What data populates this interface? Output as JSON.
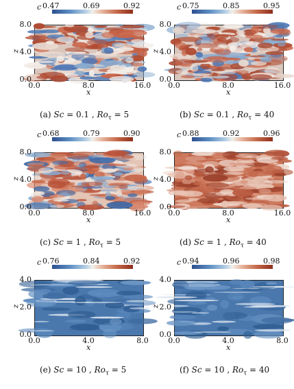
{
  "colorbar_variable": "c",
  "axis_labels": {
    "x": "x",
    "z": "z"
  },
  "panels": [
    {
      "id": "a",
      "caption_prefix": "(a)",
      "sc_label": "Sc",
      "sc_value": "0.1",
      "ro_label": "Ro",
      "ro_sub": "τ",
      "ro_value": "5",
      "cbar_ticks": [
        "0.47",
        "0.69",
        "0.92"
      ],
      "xticks": [
        "0.0",
        "8.0",
        "16.0"
      ],
      "zticks": [
        "0.0",
        "4.0",
        "8.0"
      ],
      "style": "mixed"
    },
    {
      "id": "b",
      "caption_prefix": "(b)",
      "sc_label": "Sc",
      "sc_value": "0.1",
      "ro_label": "Ro",
      "ro_sub": "τ",
      "ro_value": "40",
      "cbar_ticks": [
        "0.75",
        "0.85",
        "0.95"
      ],
      "xticks": [
        "0.0",
        "8.0",
        "16.0"
      ],
      "zticks": [
        "0.0",
        "4.0",
        "8.0"
      ],
      "style": "mixed"
    },
    {
      "id": "c",
      "caption_prefix": "(c)",
      "sc_label": "Sc",
      "sc_value": "1",
      "ro_label": "Ro",
      "ro_sub": "τ",
      "ro_value": "5",
      "cbar_ticks": [
        "0.68",
        "0.79",
        "0.90"
      ],
      "xticks": [
        "0.0",
        "8.0",
        "16.0"
      ],
      "zticks": [
        "0.0",
        "4.0",
        "8.0"
      ],
      "style": "speckle"
    },
    {
      "id": "d",
      "caption_prefix": "(d)",
      "sc_label": "Sc",
      "sc_value": "1",
      "ro_label": "Ro",
      "ro_sub": "τ",
      "ro_value": "40",
      "cbar_ticks": [
        "0.88",
        "0.92",
        "0.96"
      ],
      "xticks": [
        "0.0",
        "8.0",
        "16.0"
      ],
      "zticks": [
        "0.0",
        "4.0",
        "8.0"
      ],
      "style": "red"
    },
    {
      "id": "e",
      "caption_prefix": "(e)",
      "sc_label": "Sc",
      "sc_value": "10",
      "ro_label": "Ro",
      "ro_sub": "τ",
      "ro_value": "5",
      "cbar_ticks": [
        "0.76",
        "0.84",
        "0.92"
      ],
      "xticks": [
        "0.0",
        "4.0",
        "8.0"
      ],
      "zticks": [
        "0.0",
        "2.0",
        "4.0"
      ],
      "style": "blue"
    },
    {
      "id": "f",
      "caption_prefix": "(f)",
      "sc_label": "Sc",
      "sc_value": "10",
      "ro_label": "Ro",
      "ro_sub": "τ",
      "ro_value": "40",
      "cbar_ticks": [
        "0.94",
        "0.96",
        "0.98"
      ],
      "xticks": [
        "0.0",
        "4.0",
        "8.0"
      ],
      "zticks": [
        "0.0",
        "2.0",
        "4.0"
      ],
      "style": "blue"
    }
  ]
}
